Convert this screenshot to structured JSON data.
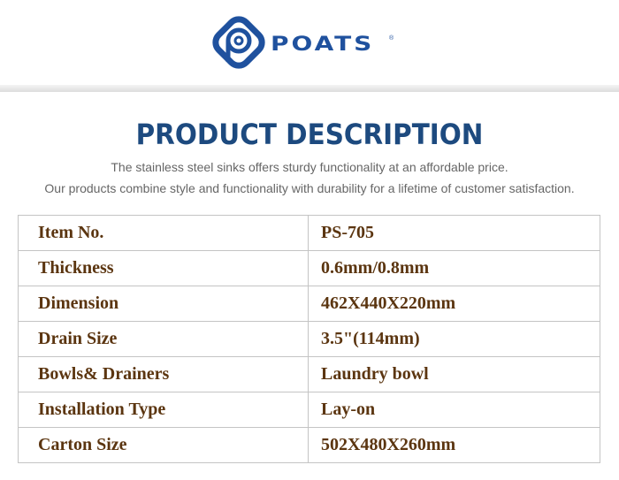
{
  "brand": {
    "name": "POATS",
    "mark": "®",
    "color": "#1f519e"
  },
  "title": "PRODUCT DESCRIPTION",
  "subtitle_lines": [
    "The stainless steel sinks offers sturdy functionality at an affordable price.",
    "Our products combine style and functionality with durability for a lifetime of customer satisfaction."
  ],
  "specs": [
    {
      "label": "Item No.",
      "value": "PS-705"
    },
    {
      "label": "Thickness",
      "value": "0.6mm/0.8mm"
    },
    {
      "label": "Dimension",
      "value": "462X440X220mm"
    },
    {
      "label": "Drain Size",
      "value": "3.5\"(114mm)"
    },
    {
      "label": "Bowls& Drainers",
      "value": "Laundry bowl"
    },
    {
      "label": "Installation Type",
      "value": "Lay-on"
    },
    {
      "label": "Carton Size",
      "value": "502X480X260mm"
    }
  ]
}
